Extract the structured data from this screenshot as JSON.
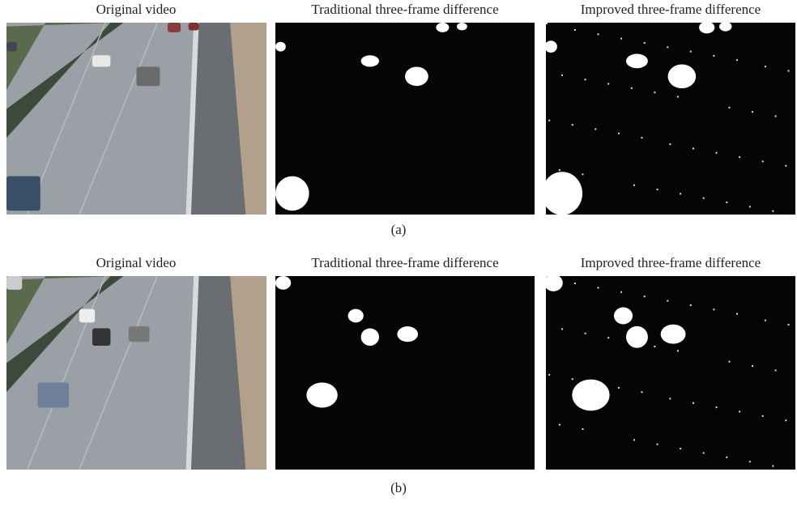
{
  "figure": {
    "rows": [
      {
        "label": "(a)",
        "panels": [
          {
            "title": "Original video"
          },
          {
            "title": "Traditional three-frame difference"
          },
          {
            "title": "Improved three-frame difference"
          }
        ]
      },
      {
        "label": "(b)",
        "panels": [
          {
            "title": "Original video"
          },
          {
            "title": "Traditional three-frame difference"
          },
          {
            "title": "Improved three-frame difference"
          }
        ]
      }
    ]
  }
}
